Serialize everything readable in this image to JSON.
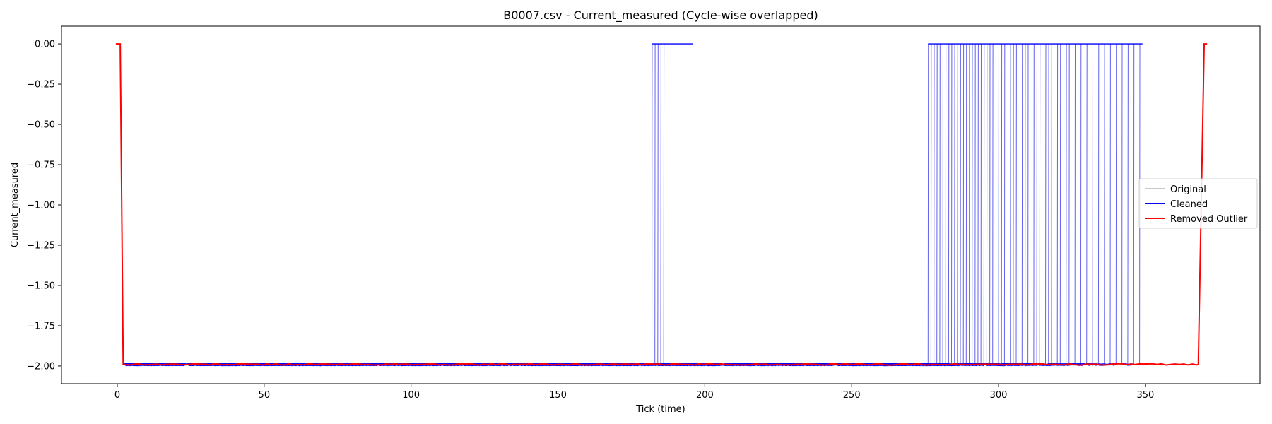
{
  "chart_data": {
    "type": "line",
    "title": "B0007.csv - Current_measured (Cycle-wise overlapped)",
    "xlabel": "Tick (time)",
    "ylabel": "Current_measured",
    "xlim": [
      -19,
      389
    ],
    "ylim": [
      -2.11,
      0.11
    ],
    "xticks": [
      0,
      50,
      100,
      150,
      200,
      250,
      300,
      350
    ],
    "yticks": [
      0.0,
      -0.25,
      -0.5,
      -0.75,
      -1.0,
      -1.25,
      -1.5,
      -1.75,
      -2.0
    ],
    "xtick_labels": [
      "0",
      "50",
      "100",
      "150",
      "200",
      "250",
      "300",
      "350"
    ],
    "ytick_labels": [
      "0.00",
      "−0.25",
      "−0.50",
      "−0.75",
      "−1.00",
      "−1.25",
      "−1.50",
      "−1.75",
      "−2.00"
    ],
    "grid": false,
    "legend_position": "center-right",
    "legend": [
      {
        "label": "Original",
        "color": "#c8c8c8"
      },
      {
        "label": "Cleaned",
        "color": "#0000ff"
      },
      {
        "label": "Removed Outlier",
        "color": "#ff0000"
      }
    ],
    "series": [
      {
        "name": "Original",
        "color": "#c8c8c8",
        "description_values": {
          "rest_level": 0.0,
          "discharge_level": -1.99,
          "drop_start_x": 1,
          "drop_end_x": 2
        }
      },
      {
        "name": "Cleaned",
        "color": "#0000ff",
        "rest_level": 0.0,
        "discharge_level": -1.99,
        "drop_x": [
          1,
          2
        ],
        "early_cycle_end_x": [
          182,
          183,
          184,
          185,
          186
        ],
        "early_cycle_tail_end_x": 196,
        "late_cycle_end_x": [
          276,
          277,
          278,
          279,
          280,
          281,
          282,
          283,
          284,
          285,
          286,
          287,
          288,
          289,
          290,
          291,
          292,
          293,
          294,
          295,
          296,
          297,
          298,
          300,
          301,
          302,
          304,
          305,
          306,
          308,
          309,
          310,
          312,
          313,
          314,
          316,
          317,
          318,
          320,
          321,
          323,
          324,
          326,
          328,
          330,
          332,
          334,
          336,
          338,
          340,
          342,
          344,
          346,
          348
        ],
        "late_cycle_tail_end_x": 349
      },
      {
        "name": "Removed Outlier",
        "color": "#ff0000",
        "rest_level": 0.0,
        "discharge_level": -1.99,
        "drop_x": [
          1,
          2
        ],
        "cycle_end_x": 368,
        "recover_x": 370,
        "tail_end_x": 371
      }
    ]
  }
}
